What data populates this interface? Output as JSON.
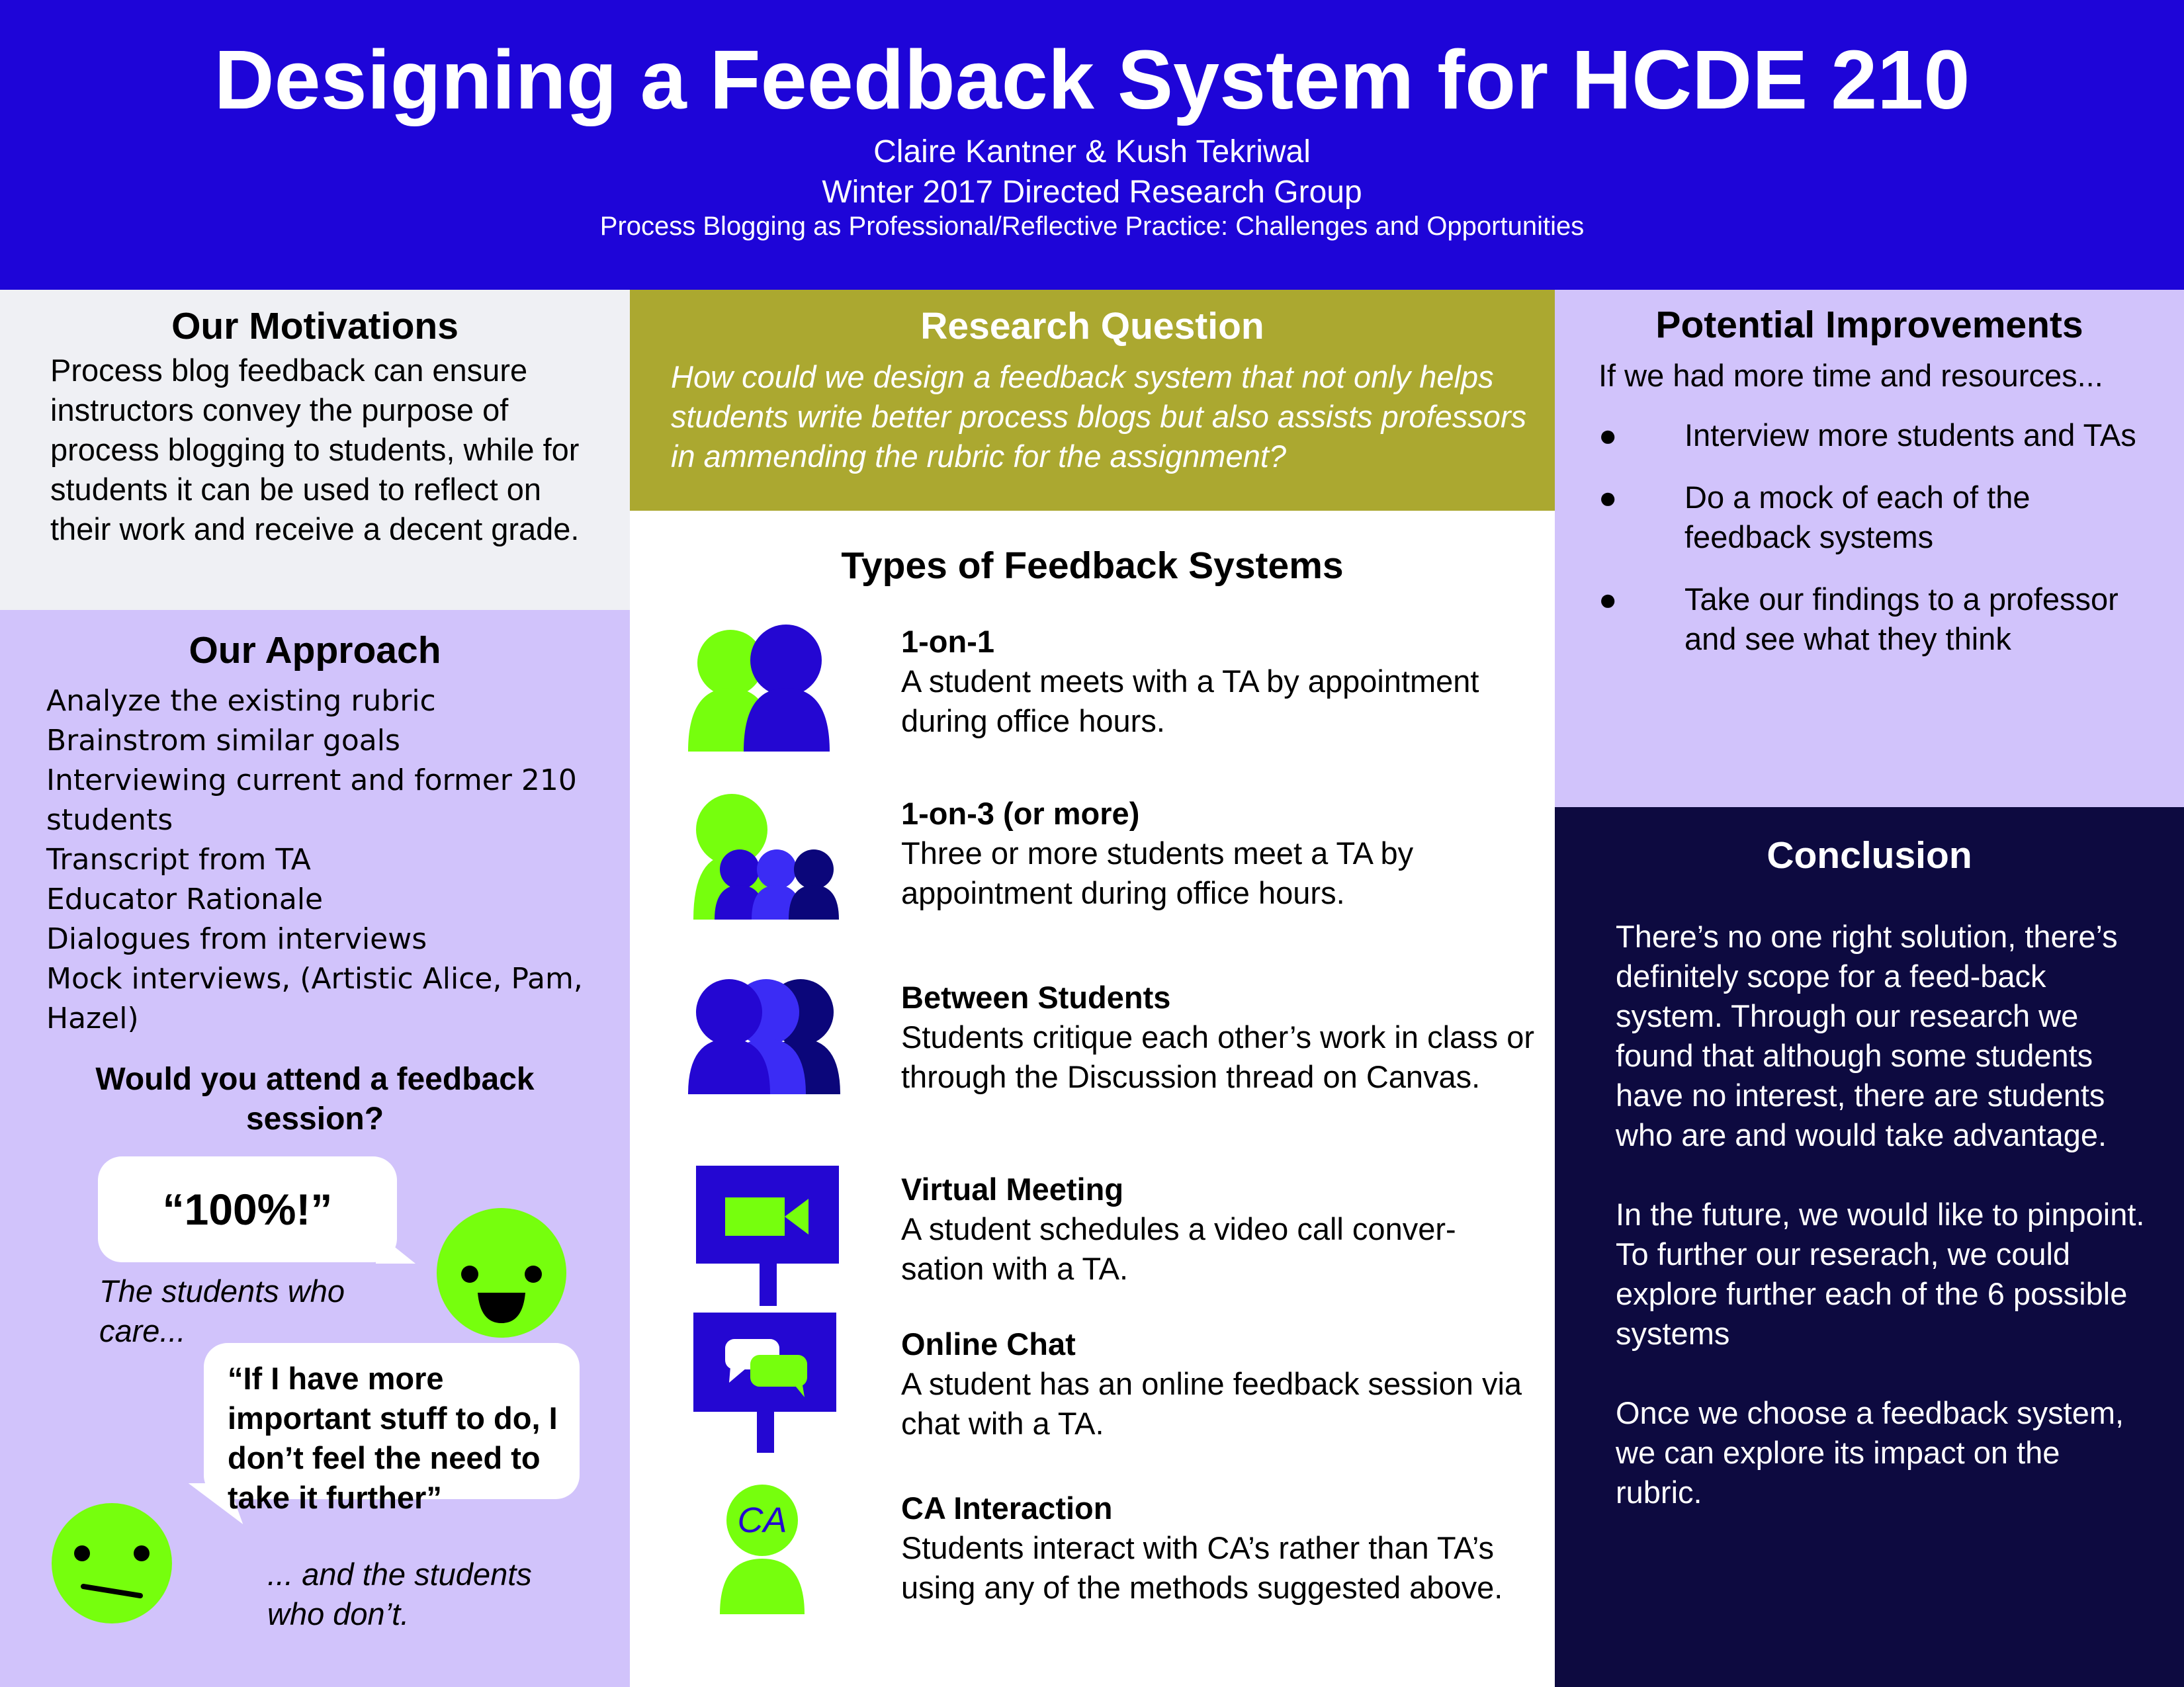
{
  "header": {
    "title": "Designing a Feedback System for HCDE 210",
    "authors": "Claire Kantner & Kush Tekriwal",
    "group": "Winter 2017 Directed Research Group",
    "project": "Process Blogging as Professional/Reflective Practice: Challenges and Opportunities"
  },
  "motivations": {
    "heading": "Our Motivations",
    "text": "Process blog feedback can ensure instructors convey the purpose of process blogging to students, while for students it can be used to reflect on their work and receive a decent grade."
  },
  "approach": {
    "heading": "Our Approach",
    "items": [
      "Analyze the existing rubric",
      "Brainstrom similar goals",
      "Interviewing current and former 210 students",
      "Transcript from TA",
      "Educator Rationale",
      "Dialogues from interviews",
      "Mock interviews, (Artistic Alice, Pam, Hazel)"
    ],
    "question": "Would you attend a feedback session?",
    "quote_yes": "“100%!”",
    "caption_yes": "The students who care...",
    "quote_no": "“If I have more important stuff to do, I don’t feel the need to take it further”",
    "caption_no": "... and the students who don’t."
  },
  "research_question": {
    "heading": "Research Question",
    "text": "How could we design a feedback system that not only helps students write better process blogs but also assists professors in ammending the rubric for the assignment?"
  },
  "feedback_types": {
    "heading": "Types of Feedback Systems",
    "items": [
      {
        "name": "1-on-1",
        "desc": "A student meets with a TA by appointment during office hours.",
        "icon": "one-on-one-icon"
      },
      {
        "name": "1-on-3 (or more)",
        "desc": "Three or more students meet a TA by appointment during office hours.",
        "icon": "group-meeting-icon"
      },
      {
        "name": "Between Students",
        "desc": "Students critique each other’s work in class or through the Discussion thread on Canvas.",
        "icon": "peer-students-icon"
      },
      {
        "name": "Virtual Meeting",
        "desc": "A student schedules a video call conver-sation with a TA.",
        "icon": "video-camera-icon"
      },
      {
        "name": "Online Chat",
        "desc": "A student has an online feedback session via chat with a TA.",
        "icon": "chat-bubbles-icon"
      },
      {
        "name": "CA Interaction",
        "desc": "Students interact with CA’s rather than TA’s using any of the methods suggested above.",
        "icon": "ca-person-icon",
        "icon_label": "CA"
      }
    ]
  },
  "improvements": {
    "heading": "Potential Improvements",
    "intro": "If we had more time and resources...",
    "items": [
      "Interview more students and TAs",
      "Do a mock of each of the feedback systems",
      "Take our findings to a professor and see what they think"
    ]
  },
  "conclusion": {
    "heading": "Conclusion",
    "paragraphs": [
      "There’s no one right solution, there’s definitely scope for a feed-back system. Through our research we found that although some students have no interest, there are students who are and would take advantage.",
      "In the future, we would like to pinpoint. To further our reserach, we could explore further each of the 6 possible systems",
      "Once we choose a feedback system, we can explore its impact on the rubric."
    ]
  },
  "colors": {
    "header": "#1e05d8",
    "lavender": "#d1c3fb",
    "olive": "#aba830",
    "navy": "#0d0a40",
    "green": "#76ff0d",
    "blue": "#2407d2",
    "mid_blue": "#3b2cf5",
    "dark_blue": "#0b067a"
  }
}
